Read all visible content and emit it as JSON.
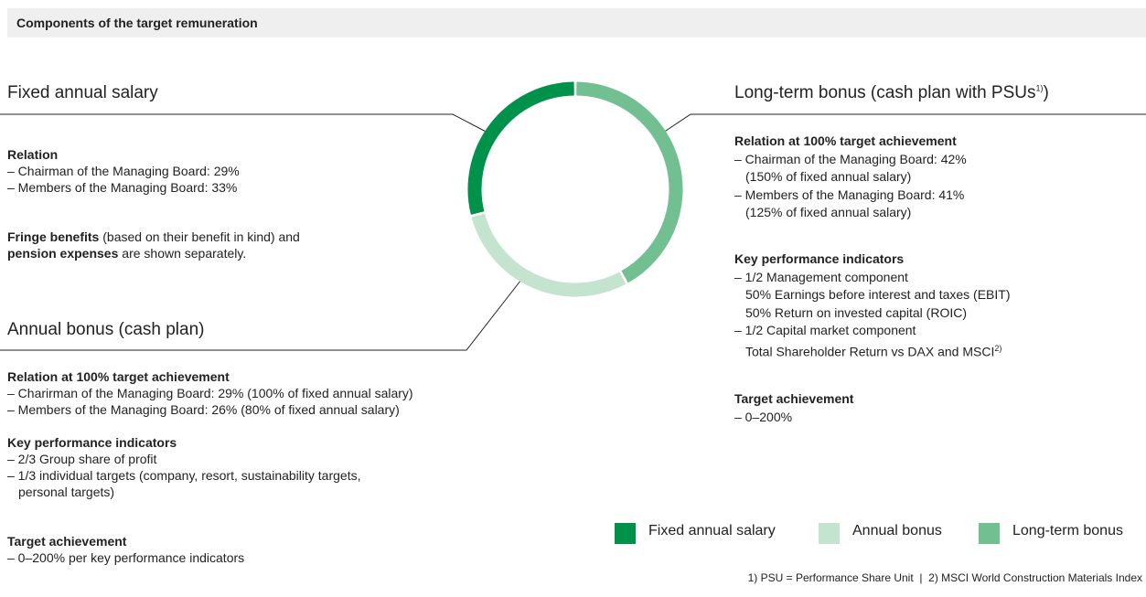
{
  "header": {
    "title": "Components of the target remuneration"
  },
  "fixed_salary": {
    "title": "Fixed annual salary",
    "relation": {
      "heading": "Relation",
      "items": [
        [
          "– Chairman of the Managing Board: 29%"
        ],
        [
          "– Members of the Managing Board: 33%"
        ]
      ]
    },
    "note": [
      "Fringe benefits",
      " (based on their benefit in kind) and",
      "pension expenses",
      " are shown separately."
    ]
  },
  "annual_bonus": {
    "title": "Annual bonus (cash plan)",
    "relation": {
      "heading": "Relation at 100% target achievement",
      "items": [
        [
          "– Charirman of the Managing Board: 29% (100% of fixed annual salary)"
        ],
        [
          "– Members of the Managing Board: 26% (80% of fixed annual salary)"
        ]
      ]
    },
    "kpi": {
      "heading": "Key performance indicators",
      "items": [
        [
          "– 2/3 Group share of profit"
        ],
        [
          "– 1/3 individual targets (company, resort, sustainability targets,",
          "personal targets)"
        ]
      ]
    },
    "target": {
      "heading": "Target achievement",
      "items": [
        [
          "– 0–200% per key performance indicators"
        ]
      ]
    }
  },
  "long_term_bonus": {
    "title": "Long-term bonus (cash plan with PSUs",
    "title_note": "1)",
    "title_end": ")",
    "relation": {
      "heading": "Relation at 100% target achievement",
      "items": [
        [
          "– Chairman of the Managing Board: 42%",
          "(150% of fixed annual salary)"
        ],
        [
          "– Members of the Managing Board: 41%",
          "(125% of fixed annual salary)"
        ]
      ]
    },
    "kpi": {
      "heading": "Key performance indicators",
      "items": [
        [
          "– 1/2 Management component",
          "50% Earnings before interest and taxes (EBIT)",
          "50% Return on invested capital (ROIC)"
        ],
        [
          "– 1/2 Capital market component",
          "Total Shareholder Return vs DAX and MSCI"
        ]
      ],
      "note": "2)"
    },
    "target": {
      "heading": "Target achievement",
      "items": [
        [
          "– 0–200%"
        ]
      ]
    }
  },
  "chart_data": {
    "type": "pie",
    "donut": true,
    "categories": [
      "Fixed annual salary",
      "Annual bonus",
      "Long-term bonus"
    ],
    "values": [
      29,
      29,
      42
    ],
    "colors": [
      "#00924a",
      "#c5e4cf",
      "#72bf91"
    ]
  },
  "footnotes": {
    "items": [
      "1) PSU = Performance Share Unit",
      "2) MSCI World Construction Materials Index"
    ],
    "separator": "|"
  }
}
